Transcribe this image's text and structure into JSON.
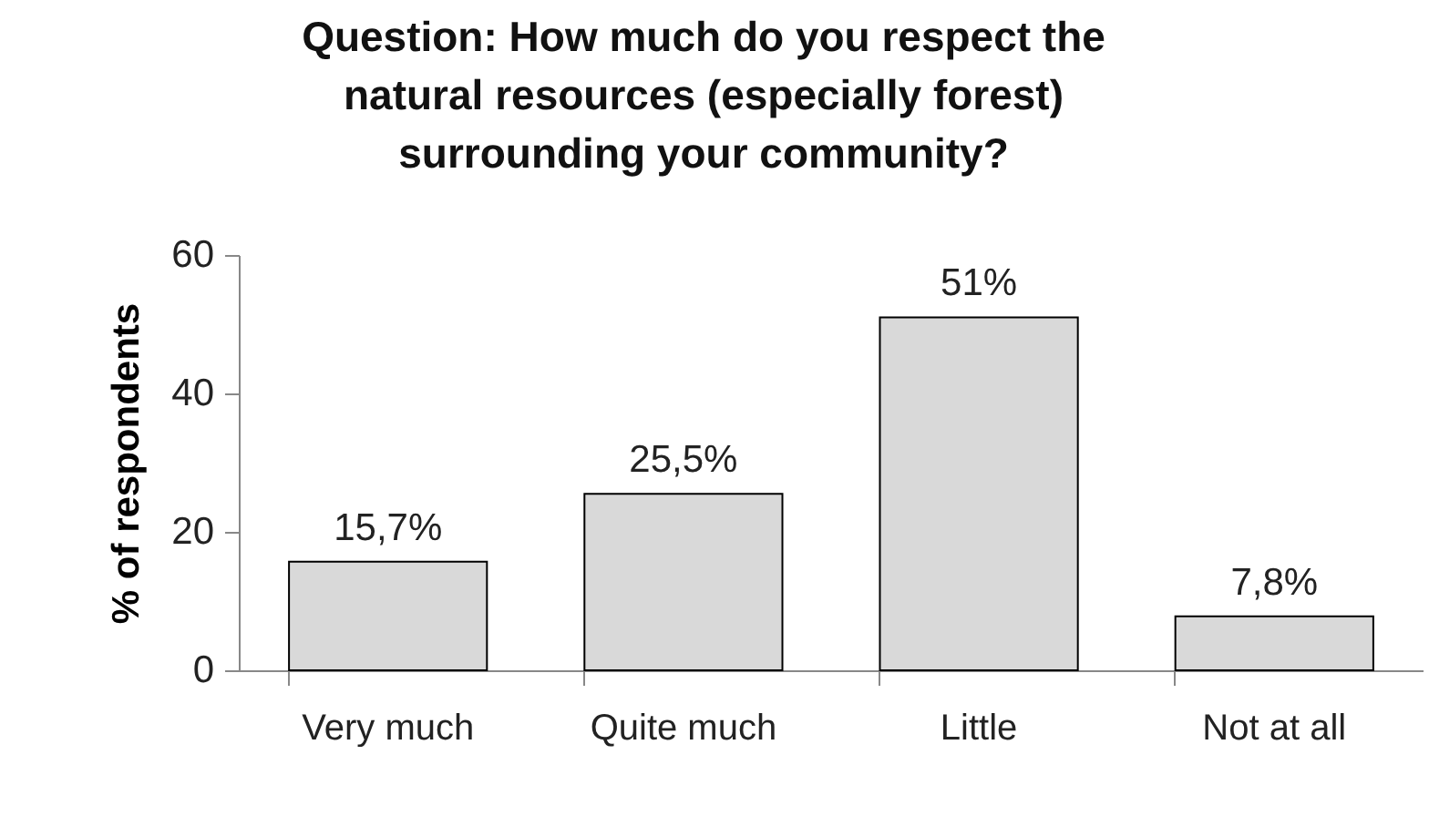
{
  "chart_data": {
    "type": "bar",
    "title": "Question: How much do you respect the natural resources (especially forest) surrounding your community?",
    "ylabel": "% of respondents",
    "categories": [
      "Very much",
      "Quite much",
      "Little",
      "Not at all"
    ],
    "values": [
      15.7,
      25.5,
      51,
      7.8
    ],
    "value_labels": [
      "15,7%",
      "25,5%",
      "51%",
      "7,8%"
    ],
    "color": "#d9d9d9",
    "ylim": [
      0,
      60
    ],
    "yticks": [
      0,
      20,
      40,
      60
    ],
    "grid": false
  }
}
